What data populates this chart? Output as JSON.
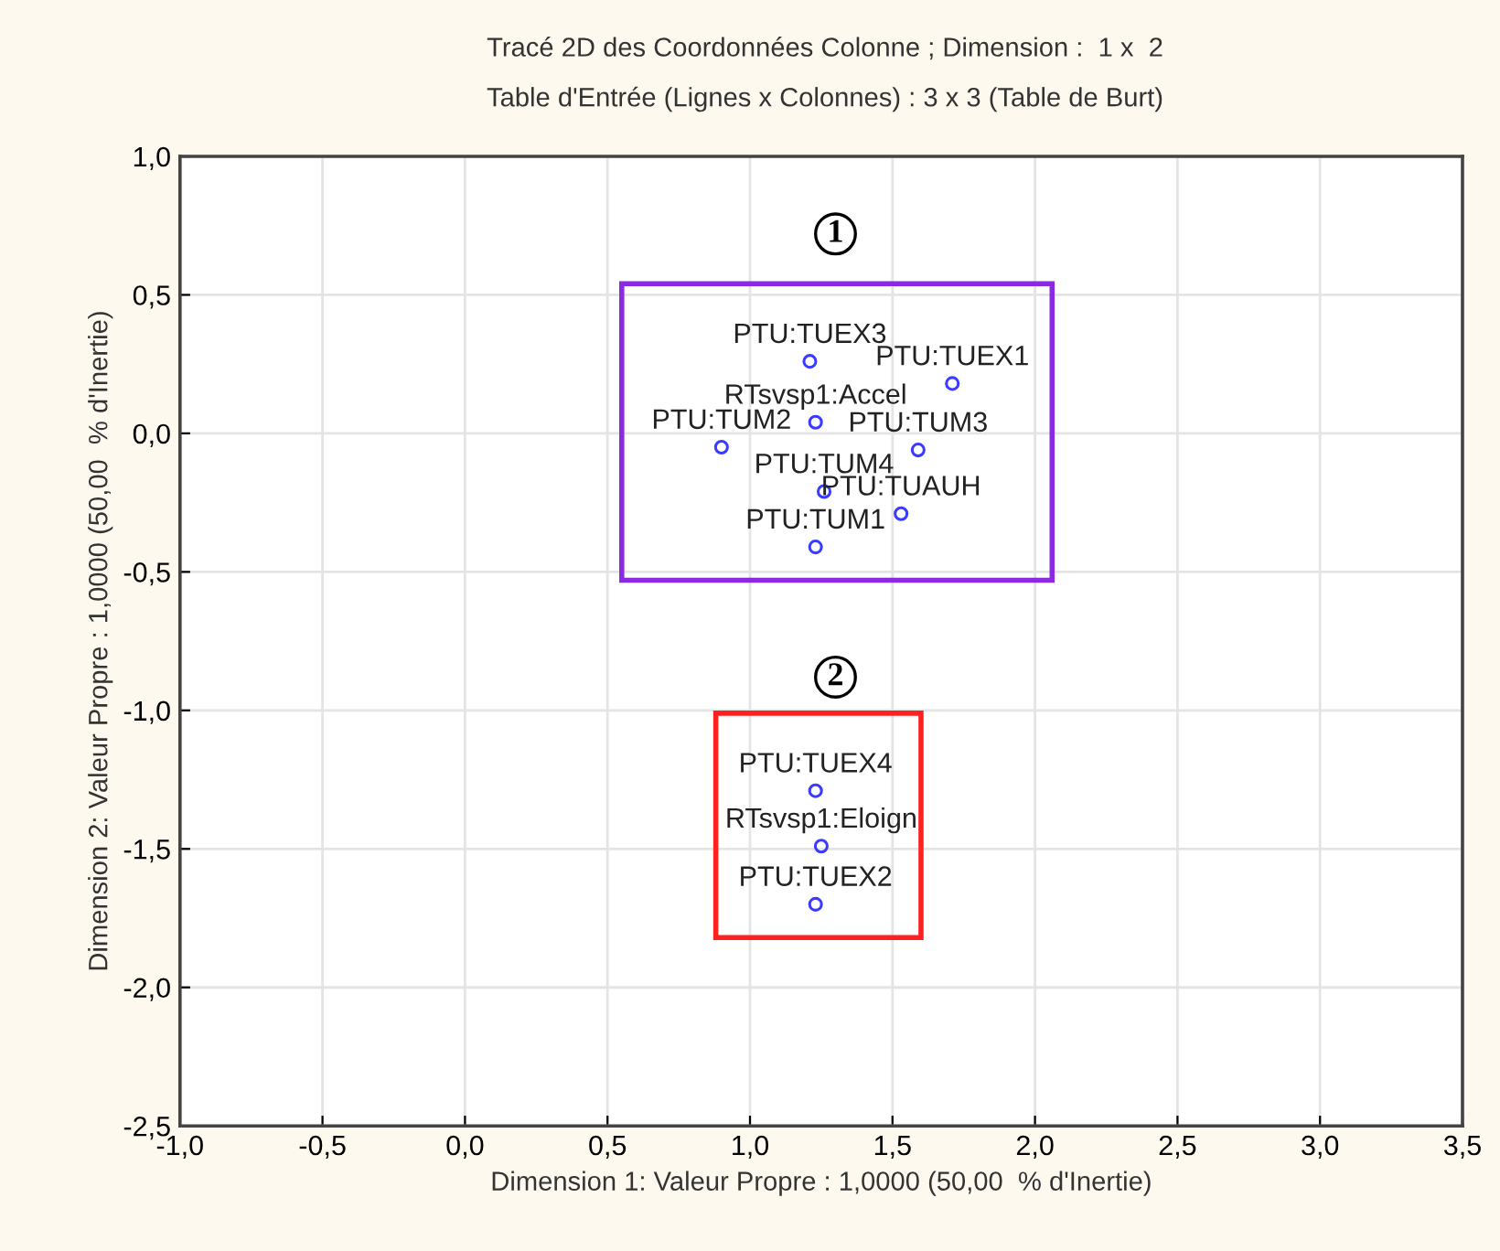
{
  "chart_data": {
    "type": "scatter",
    "title": "Tracé 2D des Coordonnées Colonne ; Dimension :  1 x  2",
    "subtitle": "Table d'Entrée (Lignes x Colonnes) : 3 x 3 (Table de Burt)",
    "xlabel": "Dimension 1: Valeur Propre : 1,0000 (50,00  % d'Inertie)",
    "ylabel": "Dimension 2: Valeur Propre : 1,0000 (50,00  % d'Inertie)",
    "x": [
      1.21,
      1.71,
      1.23,
      0.9,
      1.59,
      1.26,
      1.53,
      1.23,
      1.23,
      1.25,
      1.23
    ],
    "series": [
      {
        "color": "#3b3bff",
        "values": [
          0.26,
          0.18,
          0.04,
          -0.05,
          -0.06,
          -0.21,
          -0.29,
          -0.41,
          -1.29,
          -1.49,
          -1.7
        ]
      }
    ],
    "marker": "circle",
    "xlim": [
      -1.0,
      3.5
    ],
    "ylim": [
      -2.5,
      1.0
    ],
    "xticks": [
      {
        "value": -1.0,
        "label": "-1,0"
      },
      {
        "value": -0.5,
        "label": "-0,5"
      },
      {
        "value": 0.0,
        "label": "0,0"
      },
      {
        "value": 0.5,
        "label": "0,5"
      },
      {
        "value": 1.0,
        "label": "1,0"
      },
      {
        "value": 1.5,
        "label": "1,5"
      },
      {
        "value": 2.0,
        "label": "2,0"
      },
      {
        "value": 2.5,
        "label": "2,5"
      },
      {
        "value": 3.0,
        "label": "3,0"
      },
      {
        "value": 3.5,
        "label": "3,5"
      }
    ],
    "yticks": [
      {
        "value": -2.5,
        "label": "-2,5"
      },
      {
        "value": -2.0,
        "label": "-2,0"
      },
      {
        "value": -1.5,
        "label": "-1,5"
      },
      {
        "value": -1.0,
        "label": "-1,0"
      },
      {
        "value": -0.5,
        "label": "-0,5"
      },
      {
        "value": 0.0,
        "label": "0,0"
      },
      {
        "value": 0.5,
        "label": "0,5"
      },
      {
        "value": 1.0,
        "label": "1,0"
      }
    ],
    "grid": true,
    "annotations": [
      {
        "text": "PTU:TUEX3",
        "x": 1.21,
        "y": 0.26
      },
      {
        "text": "PTU:TUEX1",
        "x": 1.71,
        "y": 0.18
      },
      {
        "text": "RTsvsp1:Accel",
        "x": 1.23,
        "y": 0.04
      },
      {
        "text": "PTU:TUM2",
        "x": 0.9,
        "y": -0.05
      },
      {
        "text": "PTU:TUM3",
        "x": 1.59,
        "y": -0.06
      },
      {
        "text": "PTU:TUM4",
        "x": 1.26,
        "y": -0.21
      },
      {
        "text": "PTU:TUAUH",
        "x": 1.53,
        "y": -0.29
      },
      {
        "text": "PTU:TUM1",
        "x": 1.23,
        "y": -0.41
      },
      {
        "text": "PTU:TUEX4",
        "x": 1.23,
        "y": -1.29
      },
      {
        "text": "RTsvsp1:Eloign",
        "x": 1.25,
        "y": -1.49
      },
      {
        "text": "PTU:TUEX2",
        "x": 1.23,
        "y": -1.7
      },
      {
        "text": "1",
        "x": 1.3,
        "y": 0.72
      },
      {
        "text": "2",
        "x": 1.3,
        "y": -0.88
      }
    ]
  }
}
